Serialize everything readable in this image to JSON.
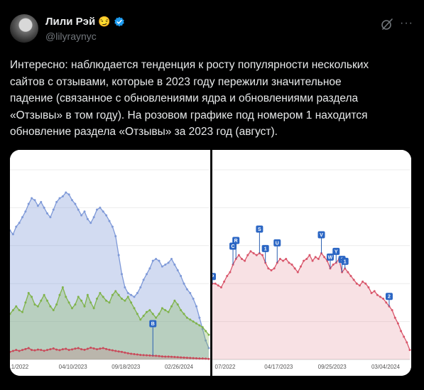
{
  "author": {
    "name": "Лили Рэй",
    "emoji": "😏",
    "handle": "@lilyraynyc"
  },
  "tweet": {
    "text": "Интересно: наблюдается тенденция к росту популярности нескольких\nсайтов с отзывами, которые в 2023 году пережили значительное\nпадение (связанное с обновлениями ядра и обновлениями раздела\n«Отзывы» в том году). На розовом графике под номером 1 находится\nобновление раздела «Отзывы» за 2023 год (август)."
  },
  "icons": {
    "verified": "verified-badge-icon",
    "grok": "grok-icon",
    "more": "more-options-icon"
  },
  "colors": {
    "accent": "#1d9bf0",
    "blue_series": "#7e99d8",
    "green_series": "#7fb34b",
    "red_series": "#c94a5a",
    "pink_series": "#d9566b"
  },
  "chart_data": [
    {
      "type": "area",
      "x_ticks": [
        "1/2022",
        "04/10/2023",
        "09/18/2023",
        "02/26/2024"
      ],
      "markers": [
        {
          "label": "B",
          "x_index": 46
        }
      ],
      "series": [
        {
          "values": [
            68,
            66,
            70,
            72,
            75,
            78,
            82,
            85,
            84,
            81,
            83,
            80,
            77,
            75,
            79,
            83,
            85,
            86,
            88,
            87,
            84,
            82,
            79,
            76,
            78,
            74,
            72,
            75,
            79,
            80,
            78,
            76,
            73,
            70,
            65,
            55,
            45,
            38,
            35,
            34,
            33,
            35,
            38,
            42,
            45,
            48,
            52,
            53,
            52,
            49,
            50,
            51,
            53,
            50,
            47,
            44,
            40,
            37,
            35,
            32,
            28,
            22,
            16,
            10,
            6
          ]
        },
        {
          "values": [
            24,
            26,
            28,
            26,
            25,
            30,
            35,
            33,
            29,
            28,
            31,
            34,
            31,
            28,
            26,
            29,
            34,
            38,
            33,
            30,
            27,
            29,
            33,
            31,
            28,
            34,
            30,
            27,
            32,
            35,
            33,
            31,
            30,
            34,
            36,
            34,
            32,
            31,
            33,
            30,
            27,
            24,
            21,
            23,
            25,
            26,
            24,
            22,
            24,
            27,
            26,
            25,
            28,
            31,
            29,
            26,
            24,
            22,
            21,
            20,
            19,
            18,
            17,
            15,
            13
          ]
        },
        {
          "values": [
            4,
            4.5,
            5,
            4.5,
            5,
            5.5,
            6,
            5,
            4.8,
            5.2,
            5,
            4.6,
            5,
            5.4,
            5.8,
            5.2,
            4.9,
            5.4,
            5.6,
            5,
            5.3,
            5.7,
            6,
            5.4,
            5.1,
            5.6,
            6.2,
            5.8,
            5.4,
            5.7,
            6,
            5.5,
            5.1,
            4.8,
            4.5,
            4.2,
            4,
            3.6,
            3.3,
            3,
            2.8,
            2.6,
            2.4,
            2.3,
            2.2,
            2.1,
            2,
            1.9,
            1.8,
            1.6,
            1.5,
            1.5,
            1.4,
            1.3,
            1.2,
            1.1,
            1,
            0.9,
            0.8,
            0.7,
            0.6,
            0.5,
            0.5,
            0.4,
            0.3
          ]
        }
      ]
    },
    {
      "type": "area",
      "x_ticks": [
        "07/2022",
        "04/17/2023",
        "09/25/2023",
        "03/04/2024"
      ],
      "markers": [
        {
          "label": "P",
          "x_index": 0
        },
        {
          "label": "C",
          "x_index": 7
        },
        {
          "label": "R",
          "x_index": 8
        },
        {
          "label": "S",
          "x_index": 16
        },
        {
          "label": "1",
          "x_index": 18
        },
        {
          "label": "U",
          "x_index": 22
        },
        {
          "label": "V",
          "x_index": 37
        },
        {
          "label": "W",
          "x_index": 40
        },
        {
          "label": "Y",
          "x_index": 42
        },
        {
          "label": "1",
          "x_index": 44
        },
        {
          "label": "1",
          "x_index": 45
        },
        {
          "label": "2",
          "x_index": 60
        }
      ],
      "series": [
        {
          "values": [
            40,
            40,
            39,
            38,
            41,
            44,
            46,
            50,
            53,
            55,
            53,
            52,
            55,
            57,
            56,
            55,
            56,
            55,
            51,
            48,
            47,
            48,
            51,
            53,
            52,
            53,
            51,
            50,
            48,
            46,
            49,
            52,
            53,
            55,
            52,
            54,
            53,
            56,
            54,
            52,
            48,
            50,
            51,
            53,
            46,
            48,
            46,
            44,
            42,
            40,
            39,
            41,
            40,
            38,
            35,
            36,
            34,
            33,
            32,
            30,
            28,
            26,
            22,
            19,
            15,
            12,
            9,
            5
          ]
        }
      ]
    }
  ]
}
